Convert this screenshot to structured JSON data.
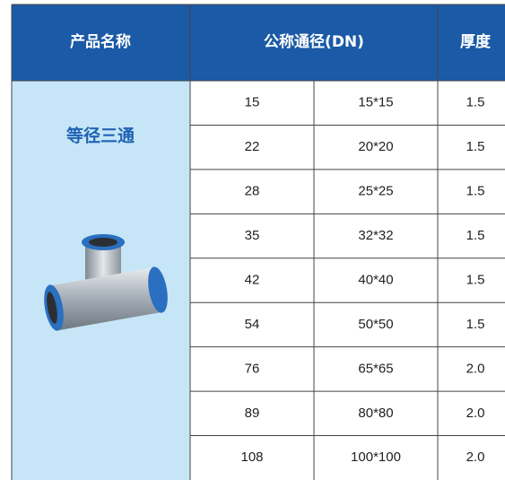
{
  "table": {
    "header": [
      "产品名称",
      "公称通径(DN)",
      "厚度"
    ],
    "product_name": "等径三通",
    "rows": [
      [
        "15",
        "15*15",
        "1.5"
      ],
      [
        "22",
        "20*20",
        "1.5"
      ],
      [
        "28",
        "25*25",
        "1.5"
      ],
      [
        "35",
        "32*32",
        "1.5"
      ],
      [
        "42",
        "40*40",
        "1.5"
      ],
      [
        "54",
        "50*50",
        "1.5"
      ],
      [
        "76",
        "65*65",
        "2.0"
      ],
      [
        "89",
        "80*80",
        "2.0"
      ],
      [
        "108",
        "100*100",
        "2.0"
      ]
    ]
  }
}
